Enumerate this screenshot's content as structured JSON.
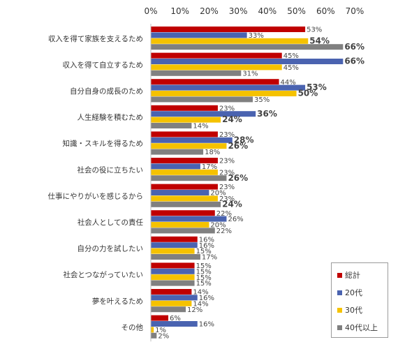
{
  "chart_data": {
    "type": "bar",
    "orientation": "horizontal",
    "categories": [
      "収入を得て家族を支えるため",
      "収入を得て自立するため",
      "自分自身の成長のため",
      "人生経験を積むため",
      "知識・スキルを得るため",
      "社会の役に立ちたい",
      "仕事にやりがいを感じるから",
      "社会人としての責任",
      "自分の力を試したい",
      "社会とつながっていたい",
      "夢を叶えるため",
      "その他"
    ],
    "series": [
      {
        "name": "総計",
        "color": "#c00000",
        "values": [
          53,
          45,
          44,
          23,
          23,
          23,
          23,
          22,
          16,
          15,
          14,
          6
        ]
      },
      {
        "name": "20代",
        "color": "#4a63b0",
        "values": [
          33,
          66,
          53,
          36,
          28,
          17,
          20,
          26,
          16,
          15,
          16,
          16
        ]
      },
      {
        "name": "30代",
        "color": "#f5c200",
        "values": [
          54,
          45,
          50,
          24,
          26,
          23,
          23,
          20,
          15,
          15,
          14,
          1
        ]
      },
      {
        "name": "40代以上",
        "color": "#808080",
        "values": [
          66,
          31,
          35,
          14,
          18,
          26,
          24,
          22,
          17,
          15,
          12,
          2
        ]
      }
    ],
    "bold_labels": [
      [
        false,
        false,
        true,
        true
      ],
      [
        false,
        true,
        false,
        false
      ],
      [
        false,
        true,
        true,
        false
      ],
      [
        false,
        true,
        true,
        false
      ],
      [
        false,
        true,
        true,
        false
      ],
      [
        false,
        false,
        false,
        true
      ],
      [
        false,
        false,
        false,
        true
      ],
      [
        false,
        false,
        false,
        false
      ],
      [
        false,
        false,
        false,
        false
      ],
      [
        false,
        false,
        false,
        false
      ],
      [
        false,
        false,
        false,
        false
      ],
      [
        false,
        false,
        false,
        false
      ]
    ],
    "xlim": [
      0,
      70
    ],
    "xticks": [
      "0%",
      "10%",
      "20%",
      "30%",
      "40%",
      "50%",
      "60%",
      "70%"
    ],
    "value_suffix": "%",
    "legend_position": "bottom-right",
    "grid": false
  }
}
